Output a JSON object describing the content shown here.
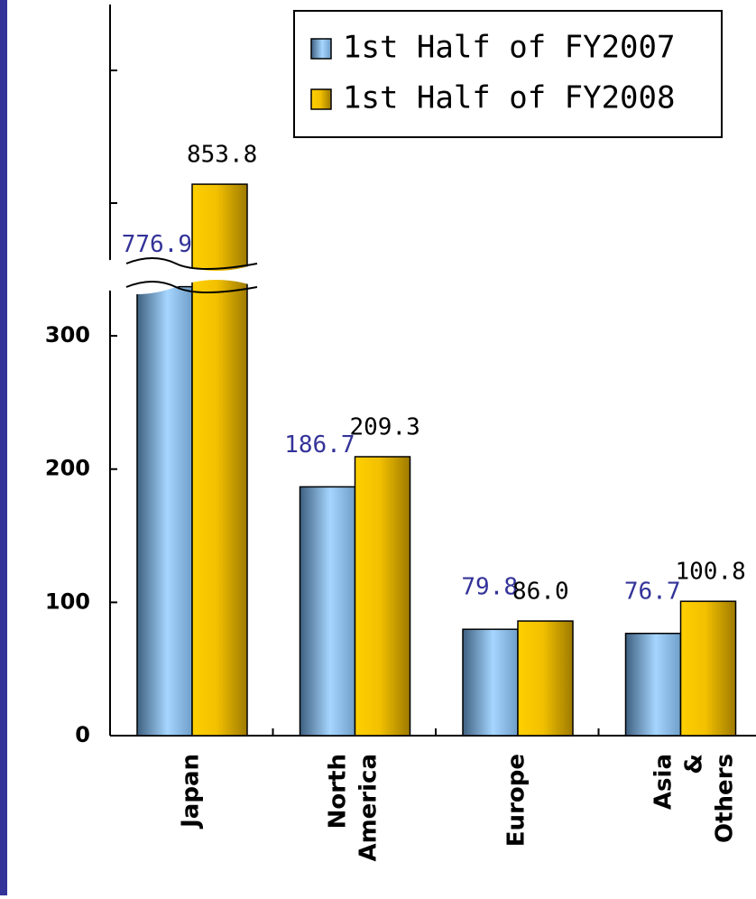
{
  "chart_data": {
    "type": "bar",
    "categories": [
      "Japan",
      "North America",
      "Europe",
      "Asia & Others"
    ],
    "series": [
      {
        "name": "1st Half of FY2007",
        "color": "#8cc4f0",
        "label_color": "#333399",
        "values": [
          776.9,
          186.7,
          79.8,
          76.7
        ],
        "value_labels": [
          "776.9",
          "186.7",
          "79.8",
          "76.7"
        ]
      },
      {
        "name": "1st Half of FY2008",
        "color": "#f0c000",
        "label_color": "#000000",
        "values": [
          853.8,
          209.3,
          86.0,
          100.8
        ],
        "value_labels": [
          "853.8",
          "209.3",
          "86.0",
          "100.8"
        ]
      }
    ],
    "ylim": [
      0,
      550
    ],
    "yticks": [
      0,
      100,
      200,
      300
    ],
    "ybreak": [
      340,
      730
    ],
    "legend": "top-right"
  }
}
